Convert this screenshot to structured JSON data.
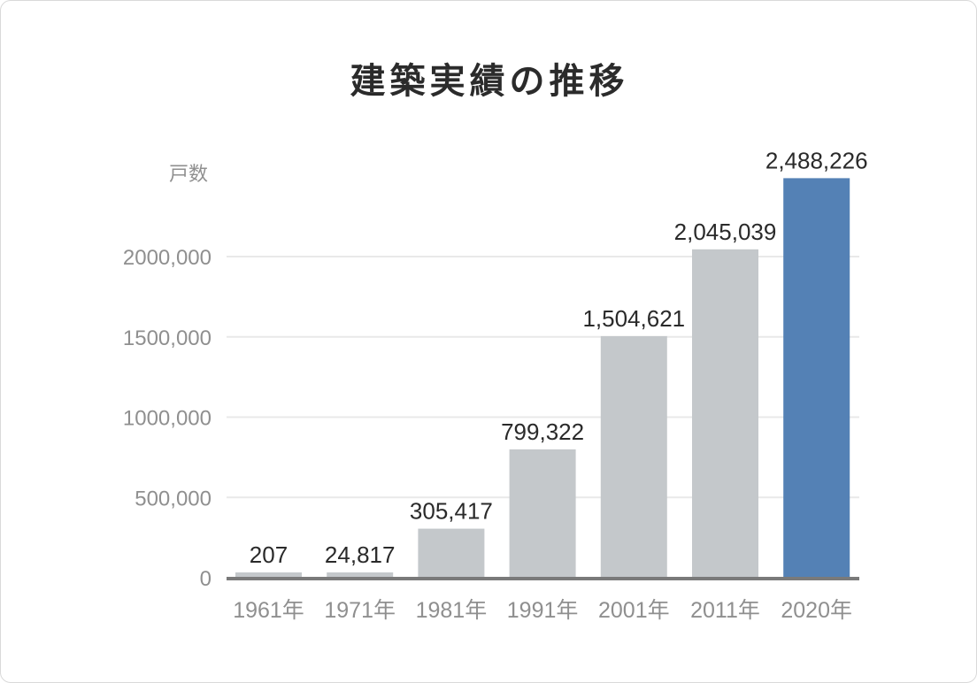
{
  "chart_data": {
    "type": "bar",
    "title": "建築実績の推移",
    "ylabel": "戸数",
    "xlabel": "",
    "categories": [
      "1961年",
      "1971年",
      "1981年",
      "1991年",
      "2001年",
      "2011年",
      "2020年"
    ],
    "values": [
      207,
      24817,
      305417,
      799322,
      1504621,
      2045039,
      2488226
    ],
    "value_labels": [
      "207",
      "24,817",
      "305,417",
      "799,322",
      "1,504,621",
      "2,045,039",
      "2,488,226"
    ],
    "ylim": [
      0,
      2600000
    ],
    "yticks": [
      0,
      500000,
      1000000,
      1500000,
      2000000
    ],
    "ytick_labels": [
      "0",
      "500,000",
      "1000,000",
      "1500,000",
      "2000,000"
    ],
    "grid": true,
    "legend": "none",
    "colors": {
      "bar": "#c4c8cb",
      "highlight": "#5481b5",
      "highlight_index": 6,
      "gridline": "#e9e9e9",
      "baseline": "#7a7a7a"
    }
  }
}
